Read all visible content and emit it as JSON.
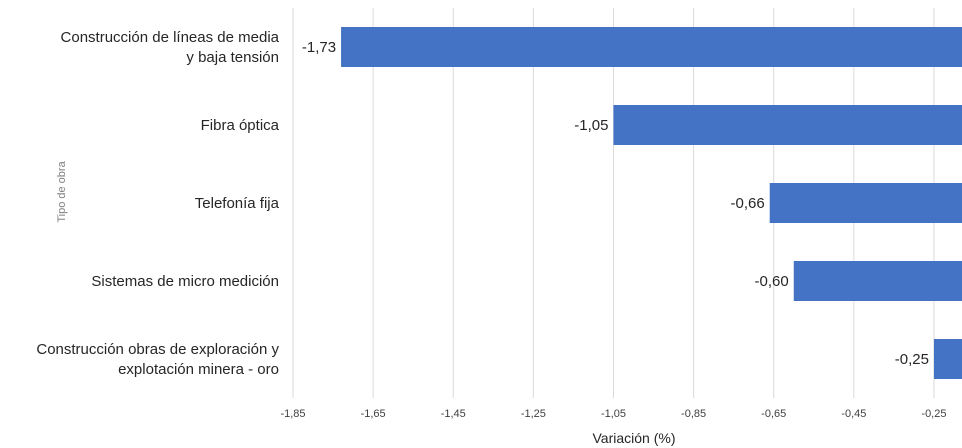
{
  "chart_data": {
    "type": "bar",
    "orientation": "horizontal",
    "categories": [
      [
        "Construcción de líneas de media",
        "y baja tensión"
      ],
      [
        "Fibra óptica"
      ],
      [
        "Telefonía fija"
      ],
      [
        "Sistemas de micro medición"
      ],
      [
        "Construcción obras de exploración y",
        "explotación minera - oro"
      ]
    ],
    "values": [
      -1.73,
      -1.05,
      -0.66,
      -0.6,
      -0.25
    ],
    "value_labels": [
      "-1,73",
      "-1,05",
      "-0,66",
      "-0,60",
      "-0,25"
    ],
    "xticks": [
      -1.85,
      -1.65,
      -1.45,
      -1.25,
      -1.05,
      -0.85,
      -0.65,
      -0.45,
      -0.25
    ],
    "xtick_labels": [
      "-1,85",
      "-1,65",
      "-1,45",
      "-1,25",
      "-1,05",
      "-0,85",
      "-0,65",
      "-0,45",
      "-0,25"
    ],
    "xlim": [
      -1.85,
      -0.18
    ],
    "xlabel": "Variación (%)",
    "ylabel": "Tipo de obra",
    "bar_color": "#4472c4",
    "grid": true
  }
}
